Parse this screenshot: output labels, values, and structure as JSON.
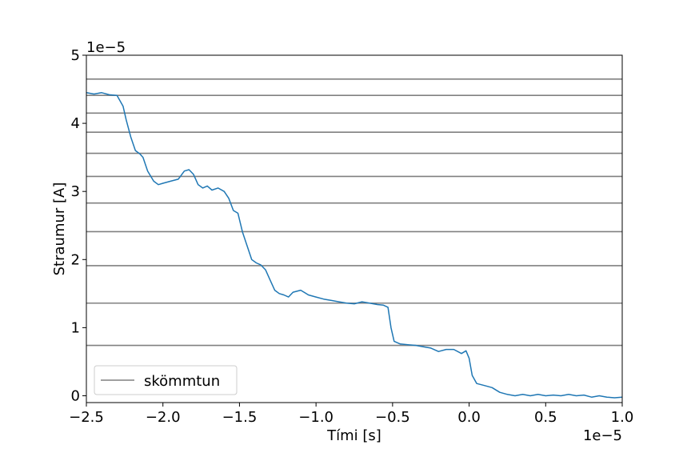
{
  "chart_data": {
    "type": "line",
    "title": "",
    "xlabel": "Tími [s]",
    "ylabel": "Straumur [A]",
    "x_multiplier": "1e−5",
    "y_multiplier": "1e−5",
    "xlim": [
      -2.5,
      1.0
    ],
    "ylim": [
      -0.1,
      5.0
    ],
    "x_ticks": [
      "−2.5",
      "−2.0",
      "−1.5",
      "−1.0",
      "−0.5",
      "0.0",
      "0.5",
      "1.0"
    ],
    "y_ticks": [
      "0",
      "1",
      "2",
      "3",
      "4",
      "5"
    ],
    "legend": {
      "location": "lower-left",
      "entries": [
        "skömmtun"
      ]
    },
    "grid": false,
    "colors": {
      "signal": "#1f77b4",
      "quantization": "#808080"
    },
    "quantization_levels": [
      0.74,
      1.36,
      1.91,
      2.41,
      2.83,
      3.22,
      3.56,
      3.87,
      4.15,
      4.41,
      4.65
    ],
    "series": [
      {
        "name": "",
        "x": [
          -2.5,
          -2.45,
          -2.4,
          -2.35,
          -2.3,
          -2.26,
          -2.24,
          -2.21,
          -2.18,
          -2.15,
          -2.13,
          -2.1,
          -2.06,
          -2.03,
          -2.0,
          -1.95,
          -1.9,
          -1.86,
          -1.83,
          -1.8,
          -1.77,
          -1.74,
          -1.71,
          -1.68,
          -1.64,
          -1.6,
          -1.57,
          -1.54,
          -1.51,
          -1.48,
          -1.45,
          -1.42,
          -1.39,
          -1.36,
          -1.33,
          -1.3,
          -1.27,
          -1.24,
          -1.21,
          -1.18,
          -1.15,
          -1.1,
          -1.05,
          -1.0,
          -0.95,
          -0.9,
          -0.85,
          -0.8,
          -0.75,
          -0.7,
          -0.65,
          -0.6,
          -0.56,
          -0.53,
          -0.51,
          -0.49,
          -0.45,
          -0.4,
          -0.35,
          -0.3,
          -0.25,
          -0.2,
          -0.15,
          -0.1,
          -0.05,
          -0.02,
          0.0,
          0.02,
          0.05,
          0.1,
          0.15,
          0.2,
          0.25,
          0.3,
          0.35,
          0.4,
          0.45,
          0.5,
          0.55,
          0.6,
          0.65,
          0.7,
          0.75,
          0.8,
          0.85,
          0.9,
          0.95,
          1.0
        ],
        "y": [
          4.45,
          4.43,
          4.45,
          4.42,
          4.41,
          4.25,
          4.05,
          3.8,
          3.6,
          3.55,
          3.5,
          3.3,
          3.15,
          3.1,
          3.12,
          3.15,
          3.18,
          3.3,
          3.32,
          3.25,
          3.1,
          3.05,
          3.08,
          3.02,
          3.05,
          3.0,
          2.9,
          2.72,
          2.68,
          2.4,
          2.2,
          2.0,
          1.95,
          1.92,
          1.85,
          1.7,
          1.55,
          1.5,
          1.48,
          1.45,
          1.52,
          1.55,
          1.48,
          1.45,
          1.42,
          1.4,
          1.38,
          1.36,
          1.35,
          1.38,
          1.36,
          1.34,
          1.33,
          1.3,
          1.0,
          0.8,
          0.76,
          0.75,
          0.74,
          0.72,
          0.7,
          0.65,
          0.68,
          0.68,
          0.62,
          0.66,
          0.55,
          0.3,
          0.18,
          0.15,
          0.12,
          0.05,
          0.02,
          0.0,
          0.02,
          0.0,
          0.02,
          0.0,
          0.01,
          0.0,
          0.02,
          0.0,
          0.01,
          -0.02,
          0.0,
          -0.02,
          -0.03,
          -0.02
        ]
      }
    ]
  }
}
